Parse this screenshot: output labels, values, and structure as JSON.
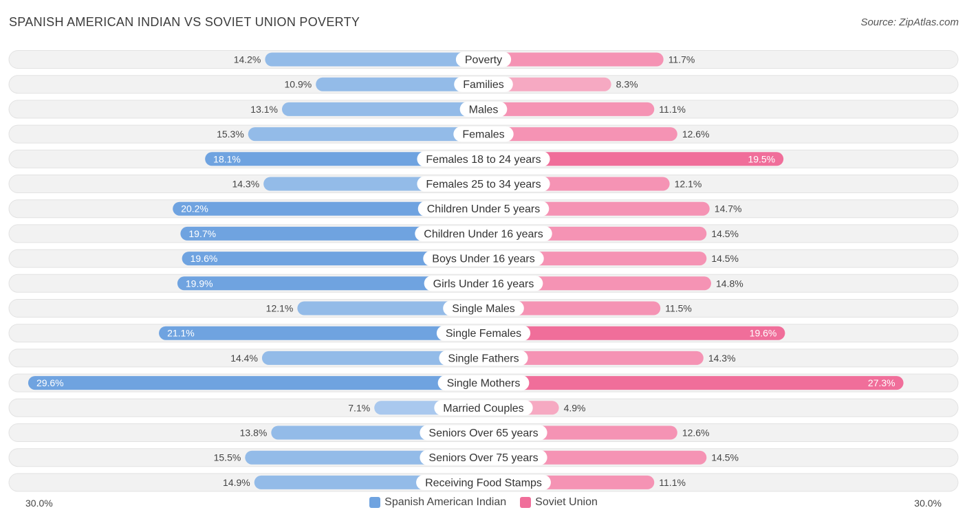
{
  "header": {
    "title": "SPANISH AMERICAN INDIAN VS SOVIET UNION POVERTY",
    "source": "Source: ZipAtlas.com"
  },
  "colors": {
    "left_series": "#6fa3e0",
    "left_series_light": "#a9c8ee",
    "right_series": "#f06e9a",
    "right_series_light": "#f6a9c2",
    "row_background": "#f1f1f1"
  },
  "chart_data": {
    "type": "bar",
    "orientation": "horizontal-diverging",
    "title": "SPANISH AMERICAN INDIAN VS SOVIET UNION POVERTY",
    "xlim": [
      -30,
      30
    ],
    "axis_min_label": "30.0%",
    "axis_max_label": "30.0%",
    "legend_position": "bottom-center",
    "categories": [
      "Poverty",
      "Families",
      "Males",
      "Females",
      "Females 18 to 24 years",
      "Females 25 to 34 years",
      "Children Under 5 years",
      "Children Under 16 years",
      "Boys Under 16 years",
      "Girls Under 16 years",
      "Single Males",
      "Single Females",
      "Single Fathers",
      "Single Mothers",
      "Married Couples",
      "Seniors Over 65 years",
      "Seniors Over 75 years",
      "Receiving Food Stamps"
    ],
    "series": [
      {
        "name": "Spanish American Indian",
        "values": [
          14.2,
          10.9,
          13.1,
          15.3,
          18.1,
          14.3,
          20.2,
          19.7,
          19.6,
          19.9,
          12.1,
          21.1,
          14.4,
          29.6,
          7.1,
          13.8,
          15.5,
          14.9
        ],
        "labels": [
          "14.2%",
          "10.9%",
          "13.1%",
          "15.3%",
          "18.1%",
          "14.3%",
          "20.2%",
          "19.7%",
          "19.6%",
          "19.9%",
          "12.1%",
          "21.1%",
          "14.4%",
          "29.6%",
          "7.1%",
          "13.8%",
          "15.5%",
          "14.9%"
        ]
      },
      {
        "name": "Soviet Union",
        "values": [
          11.7,
          8.3,
          11.1,
          12.6,
          19.5,
          12.1,
          14.7,
          14.5,
          14.5,
          14.8,
          11.5,
          19.6,
          14.3,
          27.3,
          4.9,
          12.6,
          14.5,
          11.1
        ],
        "labels": [
          "11.7%",
          "8.3%",
          "11.1%",
          "12.6%",
          "19.5%",
          "12.1%",
          "14.7%",
          "14.5%",
          "14.5%",
          "14.8%",
          "11.5%",
          "19.6%",
          "14.3%",
          "27.3%",
          "4.9%",
          "12.6%",
          "14.5%",
          "11.1%"
        ]
      }
    ]
  }
}
